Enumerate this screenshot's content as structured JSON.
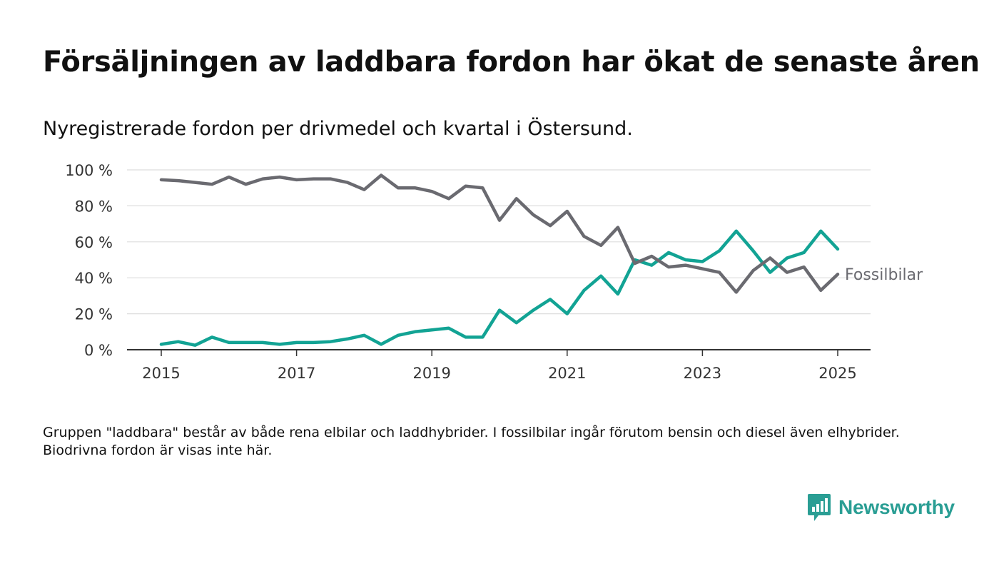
{
  "title": "Försäljningen av laddbara fordon har ökat de senaste åren",
  "subtitle": "Nyregistrerade fordon per drivmedel och kvartal i Östersund.",
  "footnote": "Gruppen \"laddbara\" består av både rena elbilar och laddhybrider. I fossilbilar ingår förutom bensin och diesel även elhybrider. Biodrivna fordon är visas inte här.",
  "brand": {
    "name": "Newsworthy",
    "color": "#2a9e94",
    "icon": "newsworthy-logo-icon"
  },
  "chart_data": {
    "type": "line",
    "xlabel": "",
    "ylabel": "",
    "x_ticks": [
      "2015",
      "2017",
      "2019",
      "2021",
      "2023",
      "2025"
    ],
    "y_ticks": [
      "0 %",
      "20 %",
      "40 %",
      "60 %",
      "80 %",
      "100 %"
    ],
    "ylim": [
      0,
      100
    ],
    "grid": "horizontal",
    "x_start_year": 2015,
    "series": [
      {
        "name": "Laddbara",
        "color": "#12a394",
        "label_visible": false,
        "values": [
          3,
          4.5,
          2.5,
          7,
          4,
          4,
          4,
          3,
          4,
          4,
          4.5,
          6,
          8,
          3,
          8,
          10,
          11,
          12,
          7,
          7,
          22,
          15,
          22,
          28,
          20,
          33,
          41,
          31,
          50,
          47,
          54,
          50,
          49,
          55,
          66,
          55,
          43,
          51,
          54,
          66,
          56
        ]
      },
      {
        "name": "Fossilbilar",
        "color": "#6a6a70",
        "label_visible": true,
        "values": [
          94.5,
          94,
          93,
          92,
          96,
          92,
          95,
          96,
          94.5,
          95,
          95,
          93,
          89,
          97,
          90,
          90,
          88,
          84,
          91,
          90,
          72,
          84,
          75,
          69,
          77,
          63,
          58,
          68,
          48,
          52,
          46,
          47,
          45,
          43,
          32,
          44,
          51,
          43,
          46,
          33,
          42
        ]
      }
    ]
  }
}
